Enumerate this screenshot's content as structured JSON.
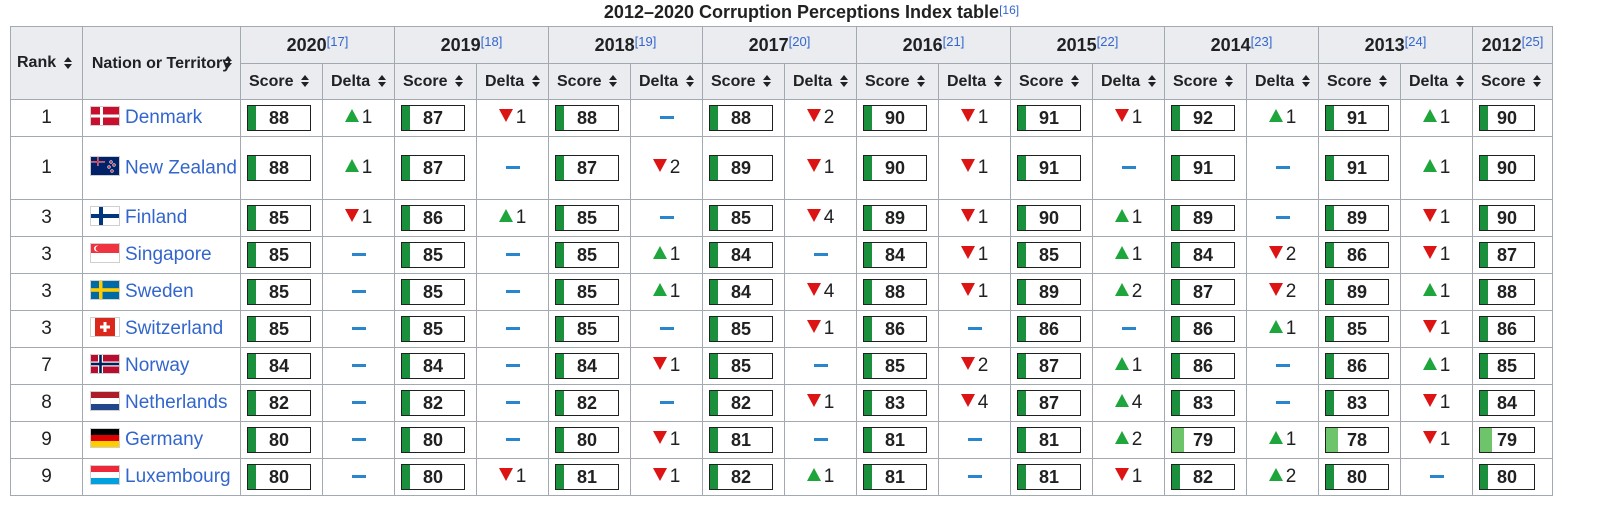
{
  "caption": {
    "title": "2012–2020 Corruption Perceptions Index table",
    "ref": "[16]"
  },
  "headers": {
    "rank": "Rank",
    "nation": "Nation or Territory",
    "score": "Score",
    "delta": "Delta"
  },
  "years": [
    {
      "label": "2020",
      "ref": "[17]"
    },
    {
      "label": "2019",
      "ref": "[18]"
    },
    {
      "label": "2018",
      "ref": "[19]"
    },
    {
      "label": "2017",
      "ref": "[20]"
    },
    {
      "label": "2016",
      "ref": "[21]"
    },
    {
      "label": "2015",
      "ref": "[22]"
    },
    {
      "label": "2014",
      "ref": "[23]"
    },
    {
      "label": "2013",
      "ref": "[24]"
    },
    {
      "label": "2012",
      "ref": "[25]"
    }
  ],
  "colors": {
    "up": "#1ea53c",
    "down": "#dd1414",
    "same": "#2a86cc",
    "bar": "#1a8f3c",
    "bar_light": "#6ec46b",
    "link": "#3366cc"
  },
  "rows": [
    {
      "rank": "1",
      "nation": "Denmark",
      "flag": "denmark-flag",
      "cells": [
        {
          "score": "88",
          "dir": "up",
          "delta": "1"
        },
        {
          "score": "87",
          "dir": "down",
          "delta": "1"
        },
        {
          "score": "88",
          "dir": "same",
          "delta": ""
        },
        {
          "score": "88",
          "dir": "down",
          "delta": "2"
        },
        {
          "score": "90",
          "dir": "down",
          "delta": "1"
        },
        {
          "score": "91",
          "dir": "down",
          "delta": "1"
        },
        {
          "score": "92",
          "dir": "up",
          "delta": "1"
        },
        {
          "score": "91",
          "dir": "up",
          "delta": "1"
        },
        {
          "score": "90"
        }
      ]
    },
    {
      "rank": "1",
      "nation": "New Zealand",
      "flag": "new-zealand-flag",
      "cells": [
        {
          "score": "88",
          "dir": "up",
          "delta": "1"
        },
        {
          "score": "87",
          "dir": "same",
          "delta": ""
        },
        {
          "score": "87",
          "dir": "down",
          "delta": "2"
        },
        {
          "score": "89",
          "dir": "down",
          "delta": "1"
        },
        {
          "score": "90",
          "dir": "down",
          "delta": "1"
        },
        {
          "score": "91",
          "dir": "same",
          "delta": ""
        },
        {
          "score": "91",
          "dir": "same",
          "delta": ""
        },
        {
          "score": "91",
          "dir": "up",
          "delta": "1"
        },
        {
          "score": "90"
        }
      ]
    },
    {
      "rank": "3",
      "nation": "Finland",
      "flag": "finland-flag",
      "cells": [
        {
          "score": "85",
          "dir": "down",
          "delta": "1"
        },
        {
          "score": "86",
          "dir": "up",
          "delta": "1"
        },
        {
          "score": "85",
          "dir": "same",
          "delta": ""
        },
        {
          "score": "85",
          "dir": "down",
          "delta": "4"
        },
        {
          "score": "89",
          "dir": "down",
          "delta": "1"
        },
        {
          "score": "90",
          "dir": "up",
          "delta": "1"
        },
        {
          "score": "89",
          "dir": "same",
          "delta": ""
        },
        {
          "score": "89",
          "dir": "down",
          "delta": "1"
        },
        {
          "score": "90"
        }
      ]
    },
    {
      "rank": "3",
      "nation": "Singapore",
      "flag": "singapore-flag",
      "cells": [
        {
          "score": "85",
          "dir": "same",
          "delta": ""
        },
        {
          "score": "85",
          "dir": "same",
          "delta": ""
        },
        {
          "score": "85",
          "dir": "up",
          "delta": "1"
        },
        {
          "score": "84",
          "dir": "same",
          "delta": ""
        },
        {
          "score": "84",
          "dir": "down",
          "delta": "1"
        },
        {
          "score": "85",
          "dir": "up",
          "delta": "1"
        },
        {
          "score": "84",
          "dir": "down",
          "delta": "2"
        },
        {
          "score": "86",
          "dir": "down",
          "delta": "1"
        },
        {
          "score": "87"
        }
      ]
    },
    {
      "rank": "3",
      "nation": "Sweden",
      "flag": "sweden-flag",
      "cells": [
        {
          "score": "85",
          "dir": "same",
          "delta": ""
        },
        {
          "score": "85",
          "dir": "same",
          "delta": ""
        },
        {
          "score": "85",
          "dir": "up",
          "delta": "1"
        },
        {
          "score": "84",
          "dir": "down",
          "delta": "4"
        },
        {
          "score": "88",
          "dir": "down",
          "delta": "1"
        },
        {
          "score": "89",
          "dir": "up",
          "delta": "2"
        },
        {
          "score": "87",
          "dir": "down",
          "delta": "2"
        },
        {
          "score": "89",
          "dir": "up",
          "delta": "1"
        },
        {
          "score": "88"
        }
      ]
    },
    {
      "rank": "3",
      "nation": "Switzerland",
      "flag": "switzerland-flag",
      "cells": [
        {
          "score": "85",
          "dir": "same",
          "delta": ""
        },
        {
          "score": "85",
          "dir": "same",
          "delta": ""
        },
        {
          "score": "85",
          "dir": "same",
          "delta": ""
        },
        {
          "score": "85",
          "dir": "down",
          "delta": "1"
        },
        {
          "score": "86",
          "dir": "same",
          "delta": ""
        },
        {
          "score": "86",
          "dir": "same",
          "delta": ""
        },
        {
          "score": "86",
          "dir": "up",
          "delta": "1"
        },
        {
          "score": "85",
          "dir": "down",
          "delta": "1"
        },
        {
          "score": "86"
        }
      ]
    },
    {
      "rank": "7",
      "nation": "Norway",
      "flag": "norway-flag",
      "cells": [
        {
          "score": "84",
          "dir": "same",
          "delta": ""
        },
        {
          "score": "84",
          "dir": "same",
          "delta": ""
        },
        {
          "score": "84",
          "dir": "down",
          "delta": "1"
        },
        {
          "score": "85",
          "dir": "same",
          "delta": ""
        },
        {
          "score": "85",
          "dir": "down",
          "delta": "2"
        },
        {
          "score": "87",
          "dir": "up",
          "delta": "1"
        },
        {
          "score": "86",
          "dir": "same",
          "delta": ""
        },
        {
          "score": "86",
          "dir": "up",
          "delta": "1"
        },
        {
          "score": "85"
        }
      ]
    },
    {
      "rank": "8",
      "nation": "Netherlands",
      "flag": "netherlands-flag",
      "cells": [
        {
          "score": "82",
          "dir": "same",
          "delta": ""
        },
        {
          "score": "82",
          "dir": "same",
          "delta": ""
        },
        {
          "score": "82",
          "dir": "same",
          "delta": ""
        },
        {
          "score": "82",
          "dir": "down",
          "delta": "1"
        },
        {
          "score": "83",
          "dir": "down",
          "delta": "4"
        },
        {
          "score": "87",
          "dir": "up",
          "delta": "4"
        },
        {
          "score": "83",
          "dir": "same",
          "delta": ""
        },
        {
          "score": "83",
          "dir": "down",
          "delta": "1"
        },
        {
          "score": "84"
        }
      ]
    },
    {
      "rank": "9",
      "nation": "Germany",
      "flag": "germany-flag",
      "cells": [
        {
          "score": "80",
          "dir": "same",
          "delta": ""
        },
        {
          "score": "80",
          "dir": "same",
          "delta": ""
        },
        {
          "score": "80",
          "dir": "down",
          "delta": "1"
        },
        {
          "score": "81",
          "dir": "same",
          "delta": ""
        },
        {
          "score": "81",
          "dir": "same",
          "delta": ""
        },
        {
          "score": "81",
          "dir": "up",
          "delta": "2"
        },
        {
          "score": "79",
          "dir": "up",
          "delta": "1",
          "light": true
        },
        {
          "score": "78",
          "dir": "down",
          "delta": "1",
          "light": true
        },
        {
          "score": "79",
          "light": true
        }
      ]
    },
    {
      "rank": "9",
      "nation": "Luxembourg",
      "flag": "luxembourg-flag",
      "cells": [
        {
          "score": "80",
          "dir": "same",
          "delta": ""
        },
        {
          "score": "80",
          "dir": "down",
          "delta": "1"
        },
        {
          "score": "81",
          "dir": "down",
          "delta": "1"
        },
        {
          "score": "82",
          "dir": "up",
          "delta": "1"
        },
        {
          "score": "81",
          "dir": "same",
          "delta": ""
        },
        {
          "score": "81",
          "dir": "down",
          "delta": "1"
        },
        {
          "score": "82",
          "dir": "up",
          "delta": "2"
        },
        {
          "score": "80",
          "dir": "same",
          "delta": ""
        },
        {
          "score": "80"
        }
      ]
    }
  ]
}
